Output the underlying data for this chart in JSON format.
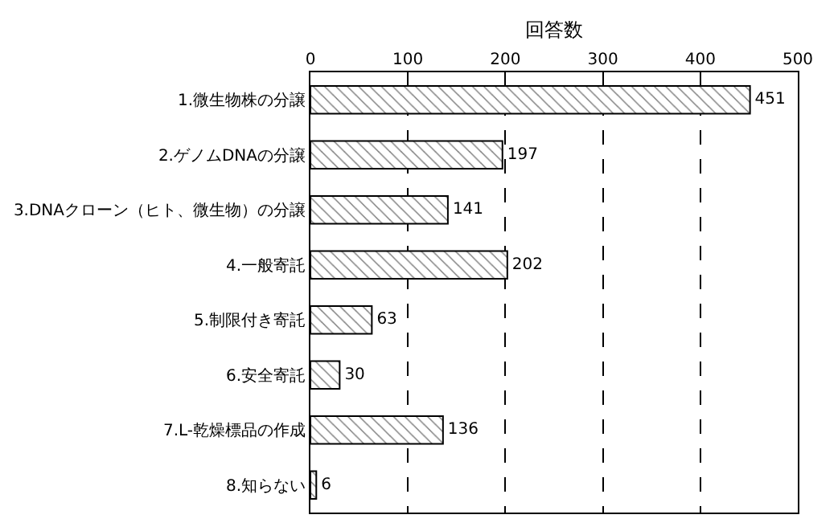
{
  "chart_data": {
    "type": "bar",
    "orientation": "horizontal",
    "xlabel": "回答数",
    "categories": [
      "1.微生物株の分譲",
      "2.ゲノムDNAの分譲",
      "3.DNAクローン（ヒト、微生物）の分譲",
      "4.一般寄託",
      "5.制限付き寄託",
      "6.安全寄託",
      "7.L-乾燥標品の作成",
      "8.知らない"
    ],
    "values": [
      451,
      197,
      141,
      202,
      63,
      30,
      136,
      6
    ],
    "color": "#000000",
    "xlim": [
      0,
      500
    ],
    "xticks": [
      0,
      100,
      200,
      300,
      400,
      500
    ],
    "grid": "x",
    "data_labels": true
  }
}
